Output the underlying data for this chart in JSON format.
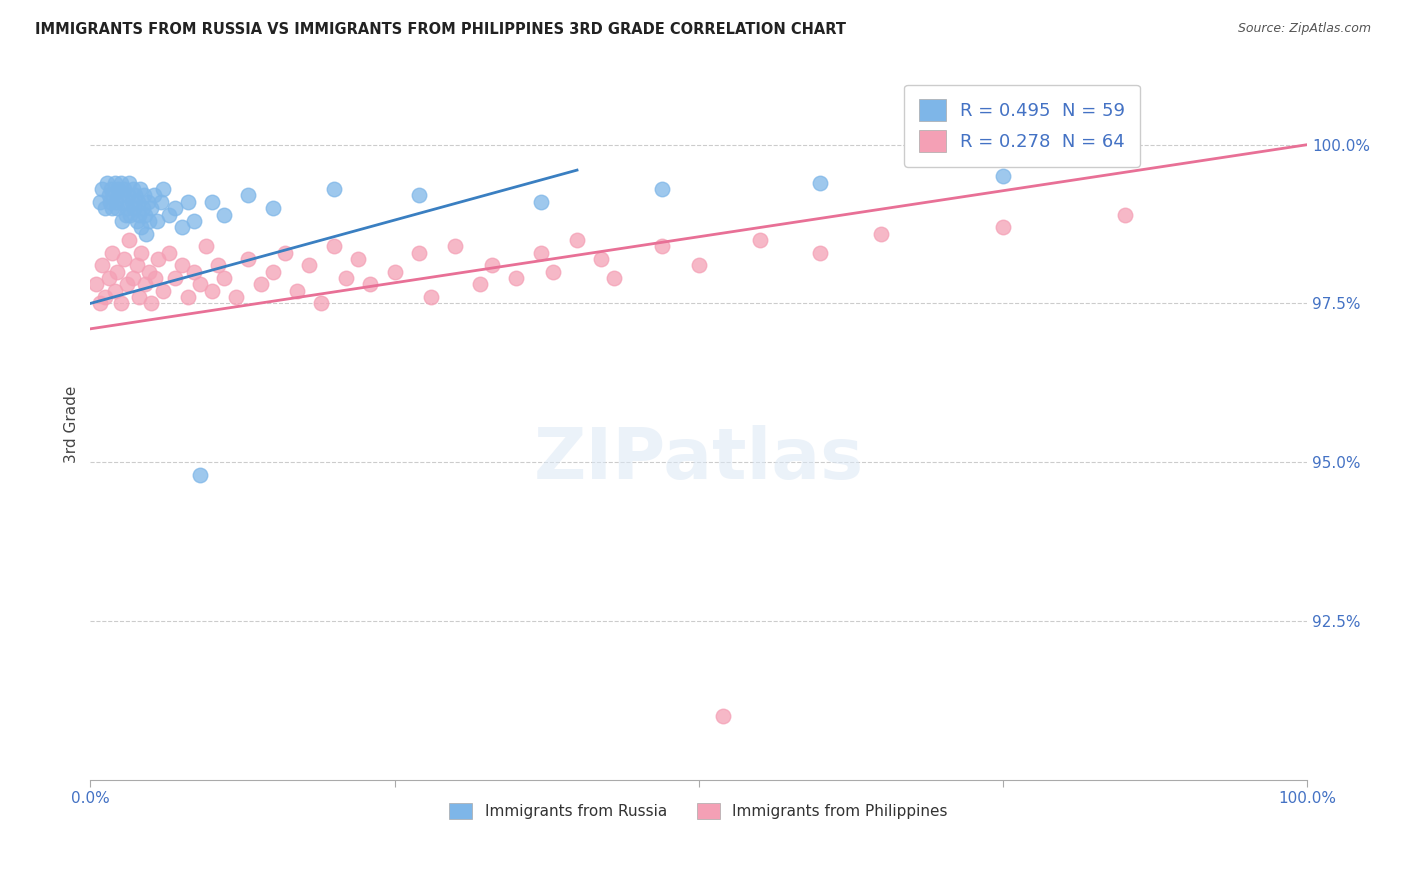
{
  "title": "IMMIGRANTS FROM RUSSIA VS IMMIGRANTS FROM PHILIPPINES 3RD GRADE CORRELATION CHART",
  "source": "Source: ZipAtlas.com",
  "ylabel": "3rd Grade",
  "russia_color": "#7eb6e8",
  "philippines_color": "#f4a0b5",
  "russia_line_color": "#3a7fc1",
  "philippines_line_color": "#e87096",
  "russia_R": 0.495,
  "russia_N": 59,
  "philippines_R": 0.278,
  "philippines_N": 64,
  "legend_label_russia": "Immigrants from Russia",
  "legend_label_philippines": "Immigrants from Philippines",
  "xlim": [
    0.0,
    100.0
  ],
  "ylim": [
    90.0,
    101.2
  ],
  "russia_x": [
    0.8,
    1.0,
    1.2,
    1.4,
    1.5,
    1.6,
    1.7,
    1.8,
    1.9,
    2.0,
    2.1,
    2.2,
    2.3,
    2.4,
    2.5,
    2.6,
    2.7,
    2.8,
    2.9,
    3.0,
    3.1,
    3.2,
    3.3,
    3.4,
    3.5,
    3.6,
    3.7,
    3.8,
    3.9,
    4.0,
    4.1,
    4.2,
    4.3,
    4.4,
    4.5,
    4.6,
    4.7,
    4.8,
    5.0,
    5.2,
    5.5,
    5.8,
    6.0,
    6.5,
    7.0,
    7.5,
    8.0,
    8.5,
    9.0,
    10.0,
    11.0,
    13.0,
    15.0,
    20.0,
    27.0,
    37.0,
    47.0,
    60.0,
    75.0
  ],
  "russia_y": [
    99.1,
    99.3,
    99.0,
    99.4,
    99.2,
    99.1,
    99.3,
    99.0,
    99.2,
    99.4,
    99.1,
    99.0,
    99.3,
    99.2,
    99.4,
    98.8,
    99.1,
    99.3,
    98.9,
    99.0,
    99.2,
    99.4,
    98.9,
    99.1,
    99.3,
    99.0,
    99.2,
    98.8,
    99.1,
    98.9,
    99.3,
    98.7,
    99.0,
    99.2,
    98.9,
    98.6,
    99.1,
    98.8,
    99.0,
    99.2,
    98.8,
    99.1,
    99.3,
    98.9,
    99.0,
    98.7,
    99.1,
    98.8,
    94.8,
    99.1,
    98.9,
    99.2,
    99.0,
    99.3,
    99.2,
    99.1,
    99.3,
    99.4,
    99.5
  ],
  "philippines_x": [
    0.5,
    0.8,
    1.0,
    1.2,
    1.5,
    1.8,
    2.0,
    2.2,
    2.5,
    2.8,
    3.0,
    3.2,
    3.5,
    3.8,
    4.0,
    4.2,
    4.5,
    4.8,
    5.0,
    5.3,
    5.6,
    6.0,
    6.5,
    7.0,
    7.5,
    8.0,
    8.5,
    9.0,
    9.5,
    10.0,
    10.5,
    11.0,
    12.0,
    13.0,
    14.0,
    15.0,
    16.0,
    17.0,
    18.0,
    19.0,
    20.0,
    21.0,
    22.0,
    23.0,
    25.0,
    27.0,
    28.0,
    30.0,
    32.0,
    33.0,
    35.0,
    37.0,
    38.0,
    40.0,
    42.0,
    43.0,
    47.0,
    50.0,
    52.0,
    55.0,
    60.0,
    65.0,
    75.0,
    85.0
  ],
  "philippines_y": [
    97.8,
    97.5,
    98.1,
    97.6,
    97.9,
    98.3,
    97.7,
    98.0,
    97.5,
    98.2,
    97.8,
    98.5,
    97.9,
    98.1,
    97.6,
    98.3,
    97.8,
    98.0,
    97.5,
    97.9,
    98.2,
    97.7,
    98.3,
    97.9,
    98.1,
    97.6,
    98.0,
    97.8,
    98.4,
    97.7,
    98.1,
    97.9,
    97.6,
    98.2,
    97.8,
    98.0,
    98.3,
    97.7,
    98.1,
    97.5,
    98.4,
    97.9,
    98.2,
    97.8,
    98.0,
    98.3,
    97.6,
    98.4,
    97.8,
    98.1,
    97.9,
    98.3,
    98.0,
    98.5,
    98.2,
    97.9,
    98.4,
    98.1,
    91.0,
    98.5,
    98.3,
    98.6,
    98.7,
    98.9
  ],
  "russia_trend_x": [
    0.0,
    40.0
  ],
  "russia_trend_y": [
    97.5,
    99.6
  ],
  "philippines_trend_x": [
    0.0,
    100.0
  ],
  "philippines_trend_y": [
    97.1,
    100.0
  ],
  "yticks": [
    92.5,
    95.0,
    97.5,
    100.0
  ],
  "xticks": [
    0.0,
    25.0,
    50.0,
    75.0,
    100.0
  ],
  "xtick_labels": [
    "0.0%",
    "",
    "",
    "",
    "100.0%"
  ],
  "ytick_labels": [
    "92.5%",
    "95.0%",
    "97.5%",
    "100.0%"
  ]
}
